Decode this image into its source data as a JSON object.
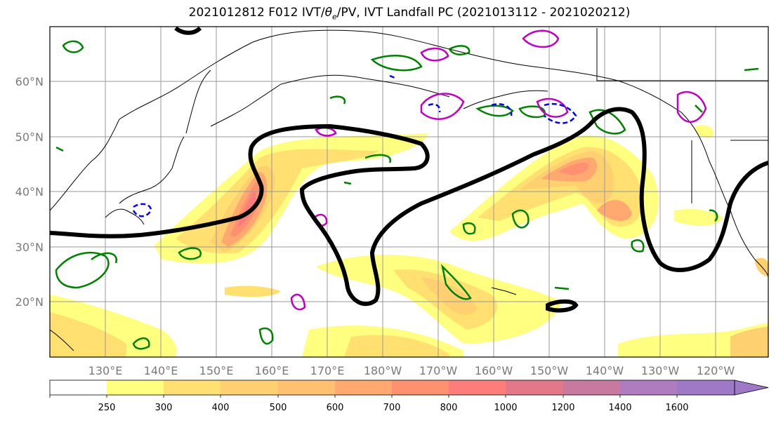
{
  "title": {
    "prefix": "2021012812 F012 IVT/",
    "theta": "θ",
    "theta_sub": "e",
    "suffix": "/PV, IVT Landfall PC (2021013112 - 2021020212)"
  },
  "map": {
    "lon_labels": [
      "130°E",
      "140°E",
      "150°E",
      "160°E",
      "170°E",
      "180°W",
      "170°W",
      "160°W",
      "150°W",
      "140°W",
      "130°W",
      "120°W"
    ],
    "lat_labels": [
      "60°N",
      "50°N",
      "40°N",
      "30°N",
      "20°N"
    ],
    "colors": {
      "pc_contour": "#000000",
      "theta_e_contour": "#008000",
      "pv_positive": "#c000c0",
      "pv_negative": "#0000ff",
      "coastline": "#000000",
      "gridline": "#999999"
    }
  },
  "colorbar": {
    "levels": [
      "250",
      "300",
      "400",
      "500",
      "600",
      "700",
      "800",
      "1000",
      "1200",
      "1400",
      "1600"
    ],
    "colors": [
      "#ffffff",
      "#ffff80",
      "#ffe070",
      "#ffd070",
      "#ffc070",
      "#ffa870",
      "#ff9070",
      "#ff7c7c",
      "#e47888",
      "#c879a0",
      "#b07cc0",
      "#a078c8"
    ]
  }
}
